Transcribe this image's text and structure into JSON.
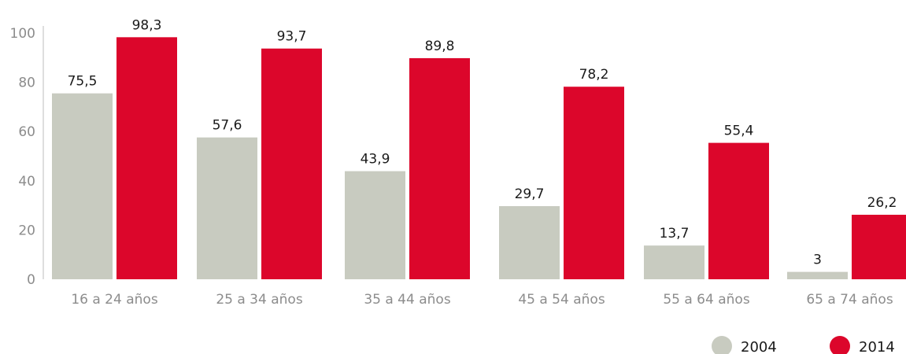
{
  "chart_data": {
    "type": "bar",
    "categories": [
      "16 a 24 años",
      "25 a 34 años",
      "35 a 44 años",
      "45 a 54 años",
      "55 a 64 años",
      "65 a 74 años"
    ],
    "series": [
      {
        "name": "2004",
        "values": [
          75.5,
          57.6,
          43.9,
          29.7,
          13.7,
          3
        ],
        "labels": [
          "75,5",
          "57,6",
          "43,9",
          "29,7",
          "13,7",
          "3"
        ],
        "color": "#c8cbc0"
      },
      {
        "name": "2014",
        "values": [
          98.3,
          93.7,
          89.8,
          78.2,
          55.4,
          26.2
        ],
        "labels": [
          "98,3",
          "93,7",
          "89,8",
          "78,2",
          "55,4",
          "26,2"
        ],
        "color": "#dc062b"
      }
    ],
    "yticks": [
      0,
      20,
      40,
      60,
      80,
      100
    ],
    "ylim": [
      0,
      100
    ],
    "grid": false,
    "legend": "bottom-right",
    "title": "",
    "xlabel": "",
    "ylabel": ""
  }
}
